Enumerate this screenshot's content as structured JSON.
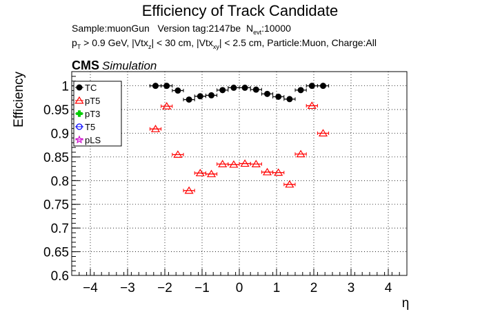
{
  "header": {
    "title": "Efficiency of Track Candidate",
    "info_line1_a": "Sample:muonGun",
    "info_line1_b": "Version tag:2147be",
    "info_line1_nevt_label": "N",
    "info_line1_nevt_sub": "evt",
    "info_line1_nevt_value": ":10000",
    "info_line2": {
      "p": "p",
      "p_sub": "T",
      "a": " > 0.9 GeV, |Vtx",
      "a_sub": "z",
      "b": "| < 30 cm, |Vtx",
      "b_sub": "xy",
      "c": "| < 2.5 cm, Particle:Muon, Charge:All"
    },
    "cms_label": "CMS",
    "simulation_label": "Simulation"
  },
  "chart_data": {
    "type": "scatter",
    "title": "Efficiency of Track Candidate",
    "xlabel": "η",
    "ylabel": "Efficiency",
    "xlim": [
      -4.5,
      4.5
    ],
    "ylim": [
      0.6,
      1.03
    ],
    "xticks": [
      -4,
      -3,
      -2,
      -1,
      0,
      1,
      2,
      3,
      4
    ],
    "xtick_labels": [
      "−4",
      "−3",
      "−2",
      "−1",
      "0",
      "1",
      "2",
      "3",
      "4"
    ],
    "yticks": [
      0.6,
      0.65,
      0.7,
      0.75,
      0.8,
      0.85,
      0.9,
      0.95,
      1.0
    ],
    "ytick_labels": [
      "0.6",
      "0.65",
      "0.7",
      "0.75",
      "0.8",
      "0.85",
      "0.9",
      "0.95",
      "1"
    ],
    "grid": true,
    "legend_position": "top-left",
    "bin_width": 0.3,
    "series": [
      {
        "name": "TC",
        "color": "#000000",
        "marker": "filled-circle",
        "x": [
          -2.25,
          -1.95,
          -1.65,
          -1.35,
          -1.05,
          -0.75,
          -0.45,
          -0.15,
          0.15,
          0.45,
          0.75,
          1.05,
          1.35,
          1.65,
          1.95,
          2.25
        ],
        "y": [
          1.0,
          1.0,
          0.99,
          0.971,
          0.978,
          0.98,
          0.991,
          0.996,
          0.996,
          0.992,
          0.983,
          0.977,
          0.972,
          0.991,
          1.0,
          1.0
        ]
      },
      {
        "name": "pT5",
        "color": "#ff0000",
        "marker": "open-triangle",
        "x": [
          -2.25,
          -1.95,
          -1.65,
          -1.35,
          -1.05,
          -0.75,
          -0.45,
          -0.15,
          0.15,
          0.45,
          0.75,
          1.05,
          1.35,
          1.65,
          1.95,
          2.25
        ],
        "y": [
          0.909,
          0.957,
          0.855,
          0.779,
          0.816,
          0.814,
          0.835,
          0.834,
          0.836,
          0.835,
          0.818,
          0.817,
          0.792,
          0.856,
          0.958,
          0.9
        ]
      },
      {
        "name": "pT3",
        "color": "#00cc00",
        "marker": "filled-cross",
        "x": [],
        "y": []
      },
      {
        "name": "T5",
        "color": "#0000ff",
        "marker": "open-circle",
        "x": [],
        "y": []
      },
      {
        "name": "pLS",
        "color": "#cc00cc",
        "marker": "open-star",
        "x": [],
        "y": []
      }
    ]
  }
}
